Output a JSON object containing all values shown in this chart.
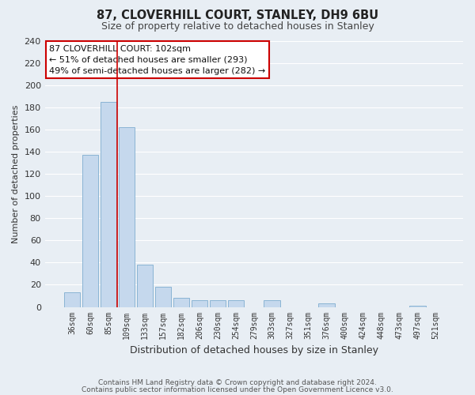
{
  "title": "87, CLOVERHILL COURT, STANLEY, DH9 6BU",
  "subtitle": "Size of property relative to detached houses in Stanley",
  "xlabel": "Distribution of detached houses by size in Stanley",
  "ylabel": "Number of detached properties",
  "bar_labels": [
    "36sqm",
    "60sqm",
    "85sqm",
    "109sqm",
    "133sqm",
    "157sqm",
    "182sqm",
    "206sqm",
    "230sqm",
    "254sqm",
    "279sqm",
    "303sqm",
    "327sqm",
    "351sqm",
    "376sqm",
    "400sqm",
    "424sqm",
    "448sqm",
    "473sqm",
    "497sqm",
    "521sqm"
  ],
  "bar_values": [
    13,
    137,
    185,
    162,
    38,
    18,
    8,
    6,
    6,
    6,
    0,
    6,
    0,
    0,
    3,
    0,
    0,
    0,
    0,
    1,
    0
  ],
  "bar_color": "#c5d8ed",
  "bar_edge_color": "#8ab4d4",
  "ylim": [
    0,
    240
  ],
  "yticks": [
    0,
    20,
    40,
    60,
    80,
    100,
    120,
    140,
    160,
    180,
    200,
    220,
    240
  ],
  "property_line_color": "#cc0000",
  "annotation_title": "87 CLOVERHILL COURT: 102sqm",
  "annotation_line1": "← 51% of detached houses are smaller (293)",
  "annotation_line2": "49% of semi-detached houses are larger (282) →",
  "annotation_box_color": "#ffffff",
  "annotation_box_edge": "#cc0000",
  "footer1": "Contains HM Land Registry data © Crown copyright and database right 2024.",
  "footer2": "Contains public sector information licensed under the Open Government Licence v3.0.",
  "background_color": "#e8eef4",
  "plot_bg_color": "#e8eef4",
  "grid_color": "#ffffff",
  "title_color": "#222222",
  "subtitle_color": "#444444",
  "tick_color": "#333333",
  "label_color": "#333333"
}
